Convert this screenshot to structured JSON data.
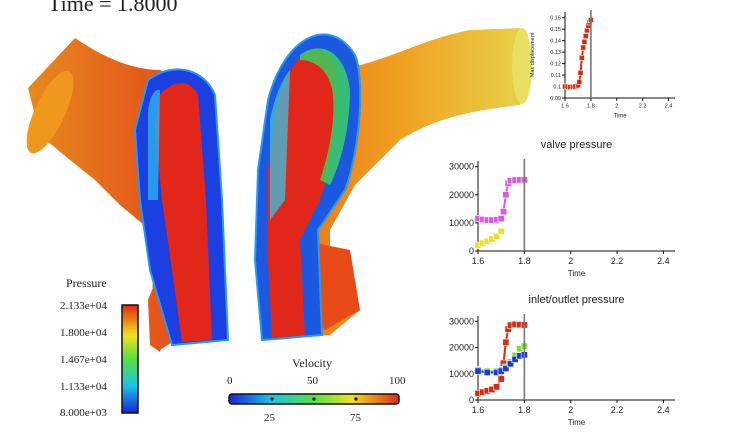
{
  "time_readout": "Time = 1.8000",
  "pressure_bar": {
    "title": "Pressure",
    "ticks": [
      "2.133e+04",
      "1.800e+04",
      "1.467e+04",
      "1.133e+04",
      "8.000e+03"
    ]
  },
  "velocity_bar": {
    "title": "Velocity",
    "top_ticks": [
      "0",
      "50",
      "100"
    ],
    "bottom_ticks": [
      "25",
      "75"
    ]
  },
  "chart_data": [
    {
      "type": "line",
      "title": "",
      "xlabel": "Time",
      "ylabel": "Max displacement",
      "xlim": [
        1.6,
        2.45
      ],
      "ylim": [
        0.09,
        0.165
      ],
      "xticks": [
        "1.6",
        "1.8",
        "2",
        "2.2",
        "2.4"
      ],
      "yticks": [
        "0.09",
        "0.1",
        "0.11",
        "0.12",
        "0.13",
        "0.14",
        "0.15",
        "0.16"
      ],
      "current_time": 1.8,
      "series": [
        {
          "color": "#dd2a10",
          "x": [
            1.6,
            1.62,
            1.64,
            1.66,
            1.68,
            1.7,
            1.71,
            1.72,
            1.73,
            1.74,
            1.75,
            1.76,
            1.77,
            1.78,
            1.79,
            1.8
          ],
          "y": [
            0.1,
            0.1,
            0.0995,
            0.0998,
            0.1,
            0.101,
            0.104,
            0.112,
            0.125,
            0.134,
            0.139,
            0.144,
            0.149,
            0.153,
            0.156,
            0.158
          ]
        }
      ]
    },
    {
      "type": "line",
      "title": "valve pressure",
      "xlabel": "Time",
      "ylabel": "",
      "xlim": [
        1.6,
        2.45
      ],
      "ylim": [
        0,
        32000
      ],
      "xticks": [
        "1.6",
        "1.8",
        "2",
        "2.2",
        "2.4"
      ],
      "yticks": [
        "0",
        "10000",
        "20000",
        "30000"
      ],
      "current_time": 1.8,
      "series": [
        {
          "color": "#dd5ae0",
          "x": [
            1.6,
            1.62,
            1.64,
            1.66,
            1.68,
            1.7,
            1.71,
            1.72,
            1.73,
            1.74,
            1.76,
            1.78,
            1.8
          ],
          "y": [
            11500,
            11200,
            11000,
            11000,
            11100,
            11500,
            14000,
            20000,
            24000,
            25000,
            25200,
            25300,
            25300
          ]
        },
        {
          "color": "#e8e030",
          "x": [
            1.6,
            1.62,
            1.64,
            1.66,
            1.68,
            1.7
          ],
          "y": [
            2000,
            2800,
            3500,
            4200,
            5200,
            7000
          ]
        }
      ]
    },
    {
      "type": "line",
      "title": "inlet/outlet pressure",
      "xlabel": "Time",
      "ylabel": "",
      "xlim": [
        1.6,
        2.45
      ],
      "ylim": [
        0,
        32000
      ],
      "xticks": [
        "1.6",
        "1.8",
        "2",
        "2.2",
        "2.4"
      ],
      "yticks": [
        "0",
        "10000",
        "20000",
        "30000"
      ],
      "current_time": 1.8,
      "series": [
        {
          "color": "#dd2a10",
          "x": [
            1.6,
            1.62,
            1.64,
            1.66,
            1.68,
            1.7,
            1.71,
            1.72,
            1.73,
            1.74,
            1.76,
            1.78,
            1.8
          ],
          "y": [
            2500,
            3000,
            3500,
            4000,
            5000,
            8000,
            14000,
            22000,
            27000,
            28500,
            28800,
            28700,
            28600
          ]
        },
        {
          "color": "#7ee030",
          "x": [
            1.6,
            1.64,
            1.68,
            1.7,
            1.72,
            1.74,
            1.76,
            1.78,
            1.8
          ],
          "y": [
            11500,
            11000,
            11000,
            11500,
            12500,
            14500,
            17000,
            19500,
            20500
          ]
        },
        {
          "color": "#1a3be0",
          "x": [
            1.6,
            1.64,
            1.68,
            1.7,
            1.72,
            1.74,
            1.76,
            1.78,
            1.8
          ],
          "y": [
            11000,
            10500,
            10500,
            11000,
            12000,
            13800,
            15500,
            16800,
            17200
          ]
        }
      ]
    }
  ]
}
